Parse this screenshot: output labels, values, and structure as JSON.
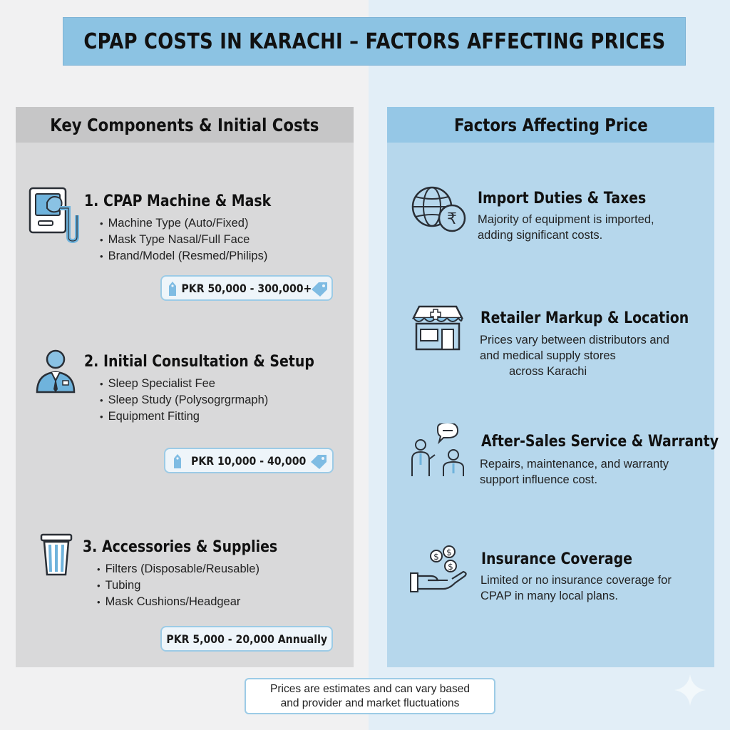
{
  "title": "CPAP COSTS IN KARACHI – FACTORS AFFECTING PRICES",
  "left_panel": {
    "heading": "Key Components & Initial Costs",
    "items": [
      {
        "title": "1. CPAP Machine & Mask",
        "icon": "cpap-machine-icon",
        "bullets": [
          "Machine Type (Auto/Fixed)",
          "Mask Type Nasal/Full Face",
          "Brand/Model (Resmed/Philips)"
        ],
        "price": "PKR 50,000 - 300,000+"
      },
      {
        "title": "2. Initial Consultation & Setup",
        "icon": "doctor-icon",
        "bullets": [
          "Sleep Specialist Fee",
          "Sleep Study (Polysogrgrmaph)",
          "Equipment Fitting"
        ],
        "price": "PKR 10,000 - 40,000"
      },
      {
        "title": "3. Accessories & Supplies",
        "icon": "filter-canister-icon",
        "bullets": [
          "Filters (Disposable/Reusable)",
          "Tubing",
          "Mask Cushions/Headgear"
        ],
        "price": "PKR 5,000 - 20,000 Annually"
      }
    ]
  },
  "right_panel": {
    "heading": "Factors Affecting Price",
    "factors": [
      {
        "title": "Import Duties & Taxes",
        "icon": "globe-rupee-icon",
        "desc": [
          "Majority of equipment is imported,",
          "adding significant costs."
        ]
      },
      {
        "title": "Retailer Markup & Location",
        "icon": "pharmacy-store-icon",
        "desc": [
          "Prices vary between distributors and",
          "and medical supply stores",
          "across Karachi"
        ]
      },
      {
        "title": "After-Sales Service & Warranty",
        "icon": "support-people-icon",
        "desc": [
          "Repairs, maintenance, and warranty",
          "support influence cost."
        ]
      },
      {
        "title": "Insurance Coverage",
        "icon": "hand-coins-icon",
        "desc": [
          "Limited or no insurance coverage for",
          "CPAP in many local plans."
        ]
      }
    ]
  },
  "footer_note": [
    "Prices are estimates and can vary based",
    "and provider and market fluctuations"
  ],
  "colors": {
    "title_bar": "#8cc3e3",
    "left_panel": "#d9d9da",
    "right_panel": "#b6d7ec",
    "accent_blue": "#6fb3dc",
    "icon_stroke": "#2a2f36"
  }
}
